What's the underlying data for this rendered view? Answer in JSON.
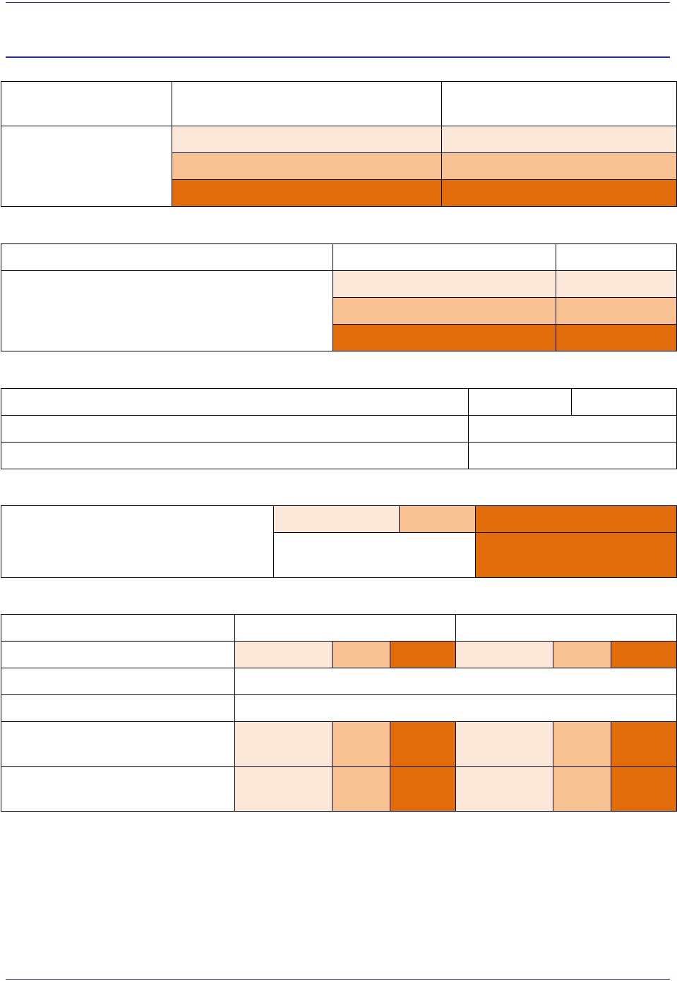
{
  "colors": {
    "rule": "#2323b0",
    "border": "#000000",
    "light": "#fce8d9",
    "medium": "#f7c191",
    "dark": "#e26b0a",
    "white": "#ffffff"
  },
  "tables": [
    {
      "id": "table-1",
      "cells": [
        {
          "r": 0,
          "c": 0,
          "fill": "white"
        },
        {
          "r": 0,
          "c": 1,
          "fill": "white"
        },
        {
          "r": 0,
          "c": 2,
          "fill": "white"
        },
        {
          "r": 1,
          "c": 0,
          "rowspan": 3,
          "fill": "white"
        },
        {
          "r": 1,
          "c": 1,
          "fill": "light"
        },
        {
          "r": 1,
          "c": 2,
          "fill": "light"
        },
        {
          "r": 2,
          "c": 1,
          "fill": "medium"
        },
        {
          "r": 2,
          "c": 2,
          "fill": "medium"
        },
        {
          "r": 3,
          "c": 1,
          "fill": "dark"
        },
        {
          "r": 3,
          "c": 2,
          "fill": "dark"
        }
      ]
    },
    {
      "id": "table-2",
      "cells": [
        {
          "r": 0,
          "c": 0,
          "fill": "white"
        },
        {
          "r": 0,
          "c": 1,
          "fill": "white"
        },
        {
          "r": 0,
          "c": 2,
          "fill": "white"
        },
        {
          "r": 1,
          "c": 0,
          "rowspan": 3,
          "fill": "white"
        },
        {
          "r": 1,
          "c": 1,
          "fill": "light"
        },
        {
          "r": 1,
          "c": 2,
          "fill": "light"
        },
        {
          "r": 2,
          "c": 1,
          "fill": "medium"
        },
        {
          "r": 2,
          "c": 2,
          "fill": "medium"
        },
        {
          "r": 3,
          "c": 1,
          "fill": "dark"
        },
        {
          "r": 3,
          "c": 2,
          "fill": "dark"
        }
      ]
    },
    {
      "id": "table-3",
      "cells": [
        {
          "r": 0,
          "c": 0,
          "fill": "white"
        },
        {
          "r": 0,
          "c": 1,
          "fill": "white"
        },
        {
          "r": 0,
          "c": 2,
          "fill": "white"
        },
        {
          "r": 1,
          "c": 0,
          "fill": "white"
        },
        {
          "r": 1,
          "c": 1,
          "colspan": 2,
          "fill": "white"
        },
        {
          "r": 2,
          "c": 0,
          "fill": "white"
        },
        {
          "r": 2,
          "c": 1,
          "colspan": 2,
          "fill": "white"
        }
      ]
    },
    {
      "id": "table-4",
      "cells": [
        {
          "r": 0,
          "c": 0,
          "rowspan": 2,
          "fill": "white"
        },
        {
          "r": 0,
          "c": 1,
          "fill": "light"
        },
        {
          "r": 0,
          "c": 2,
          "fill": "medium"
        },
        {
          "r": 0,
          "c": 3,
          "fill": "dark"
        },
        {
          "r": 1,
          "c": 1,
          "colspan": 2,
          "fill": "white"
        },
        {
          "r": 1,
          "c": 3,
          "fill": "dark"
        }
      ]
    },
    {
      "id": "table-5",
      "cells": [
        {
          "r": 0,
          "c": 0,
          "fill": "white"
        },
        {
          "r": 0,
          "c": 1,
          "colspan": 3,
          "fill": "white"
        },
        {
          "r": 0,
          "c": 4,
          "colspan": 3,
          "fill": "white"
        },
        {
          "r": 1,
          "c": 0,
          "fill": "white"
        },
        {
          "r": 1,
          "c": 1,
          "fill": "light"
        },
        {
          "r": 1,
          "c": 2,
          "fill": "medium"
        },
        {
          "r": 1,
          "c": 3,
          "fill": "dark"
        },
        {
          "r": 1,
          "c": 4,
          "fill": "light"
        },
        {
          "r": 1,
          "c": 5,
          "fill": "medium"
        },
        {
          "r": 1,
          "c": 6,
          "fill": "dark"
        },
        {
          "r": 2,
          "c": 0,
          "fill": "white"
        },
        {
          "r": 2,
          "c": 1,
          "colspan": 6,
          "fill": "white"
        },
        {
          "r": 3,
          "c": 0,
          "fill": "white"
        },
        {
          "r": 3,
          "c": 1,
          "colspan": 6,
          "fill": "white"
        },
        {
          "r": 4,
          "c": 0,
          "fill": "white"
        },
        {
          "r": 4,
          "c": 1,
          "fill": "light"
        },
        {
          "r": 4,
          "c": 2,
          "fill": "medium"
        },
        {
          "r": 4,
          "c": 3,
          "fill": "dark"
        },
        {
          "r": 4,
          "c": 4,
          "fill": "light"
        },
        {
          "r": 4,
          "c": 5,
          "fill": "medium"
        },
        {
          "r": 4,
          "c": 6,
          "fill": "dark"
        },
        {
          "r": 5,
          "c": 0,
          "fill": "white"
        },
        {
          "r": 5,
          "c": 1,
          "fill": "light"
        },
        {
          "r": 5,
          "c": 2,
          "fill": "medium"
        },
        {
          "r": 5,
          "c": 3,
          "fill": "dark"
        },
        {
          "r": 5,
          "c": 4,
          "fill": "light"
        },
        {
          "r": 5,
          "c": 5,
          "fill": "medium"
        },
        {
          "r": 5,
          "c": 6,
          "fill": "dark"
        }
      ]
    }
  ]
}
